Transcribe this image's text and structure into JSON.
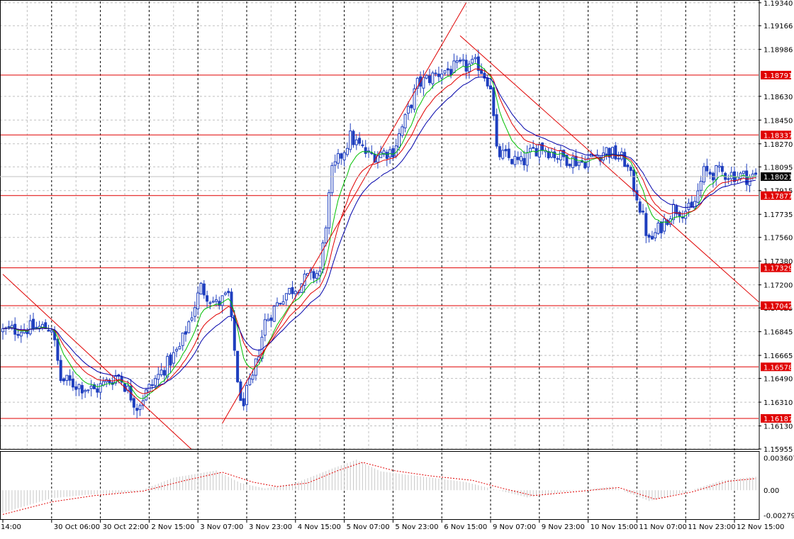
{
  "colors": {
    "background": "#ffffff",
    "grid": "#c0c0c0",
    "candles": "#1f3fbf",
    "ma_fast": "#00c000",
    "ma_mid": "#e00000",
    "ma_slow": "#0000aa",
    "levels": "#e00000",
    "trendlines": "#e00000",
    "current_price_badge": "#000000",
    "level_badge": "#e00000",
    "osma_bars": "#c8c8c8",
    "osma_signal": "#e00000"
  },
  "chart_data": [
    {
      "type": "candlestick",
      "price_axis": {
        "ticks": [
          "1.19340",
          "1.19166",
          "1.18986",
          "1.18630",
          "1.18450",
          "1.18270",
          "1.18095",
          "1.17915",
          "1.17735",
          "1.17560",
          "1.17380",
          "1.17200",
          "1.17025",
          "1.16845",
          "1.16665",
          "1.16490",
          "1.16310",
          "1.16130",
          "1.15955"
        ],
        "tick_values": [
          1.1934,
          1.19166,
          1.18986,
          1.1863,
          1.1845,
          1.1827,
          1.18095,
          1.17915,
          1.17735,
          1.1756,
          1.1738,
          1.172,
          1.17025,
          1.16845,
          1.16665,
          1.1649,
          1.1631,
          1.1613,
          1.15955
        ],
        "ylim": [
          1.1595,
          1.1935
        ]
      },
      "time_axis": {
        "labels": [
          "14:00",
          "30 Oct 06:00",
          "30 Oct 22:00",
          "2 Nov 15:00",
          "3 Nov 07:00",
          "3 Nov 23:00",
          "4 Nov 15:00",
          "5 Nov 07:00",
          "5 Nov 23:00",
          "6 Nov 15:00",
          "9 Nov 07:00",
          "9 Nov 23:00",
          "10 Nov 15:00",
          "11 Nov 07:00",
          "11 Nov 23:00",
          "12 Nov 15:00"
        ],
        "label_bars": [
          0,
          16,
          32,
          48,
          64,
          80,
          96,
          112,
          128,
          144,
          160,
          176,
          192,
          208,
          224,
          240
        ]
      },
      "price_path_keypoints": [
        {
          "bar": 0,
          "price": 1.1685
        },
        {
          "bar": 8,
          "price": 1.1687
        },
        {
          "bar": 16,
          "price": 1.1688
        },
        {
          "bar": 19,
          "price": 1.1648
        },
        {
          "bar": 30,
          "price": 1.164
        },
        {
          "bar": 38,
          "price": 1.1652
        },
        {
          "bar": 44,
          "price": 1.1628
        },
        {
          "bar": 50,
          "price": 1.1648
        },
        {
          "bar": 58,
          "price": 1.1672
        },
        {
          "bar": 65,
          "price": 1.1718
        },
        {
          "bar": 70,
          "price": 1.1705
        },
        {
          "bar": 74,
          "price": 1.1712
        },
        {
          "bar": 78,
          "price": 1.1628
        },
        {
          "bar": 82,
          "price": 1.1648
        },
        {
          "bar": 86,
          "price": 1.1692
        },
        {
          "bar": 92,
          "price": 1.1712
        },
        {
          "bar": 100,
          "price": 1.1725
        },
        {
          "bar": 104,
          "price": 1.173
        },
        {
          "bar": 108,
          "price": 1.1805
        },
        {
          "bar": 114,
          "price": 1.1832
        },
        {
          "bar": 120,
          "price": 1.1818
        },
        {
          "bar": 128,
          "price": 1.1822
        },
        {
          "bar": 132,
          "price": 1.1845
        },
        {
          "bar": 136,
          "price": 1.1872
        },
        {
          "bar": 144,
          "price": 1.1882
        },
        {
          "bar": 150,
          "price": 1.1885
        },
        {
          "bar": 156,
          "price": 1.1887
        },
        {
          "bar": 160,
          "price": 1.1872
        },
        {
          "bar": 162,
          "price": 1.182
        },
        {
          "bar": 170,
          "price": 1.1812
        },
        {
          "bar": 176,
          "price": 1.1826
        },
        {
          "bar": 182,
          "price": 1.1818
        },
        {
          "bar": 190,
          "price": 1.1813
        },
        {
          "bar": 198,
          "price": 1.1822
        },
        {
          "bar": 204,
          "price": 1.1814
        },
        {
          "bar": 208,
          "price": 1.1788
        },
        {
          "bar": 212,
          "price": 1.1752
        },
        {
          "bar": 220,
          "price": 1.1778
        },
        {
          "bar": 226,
          "price": 1.1776
        },
        {
          "bar": 230,
          "price": 1.1805
        },
        {
          "bar": 236,
          "price": 1.1805
        },
        {
          "bar": 244,
          "price": 1.1802
        },
        {
          "bar": 247,
          "price": 1.18021
        }
      ],
      "current_price": "1.18021",
      "current_price_value": 1.18021,
      "horizontal_levels": [
        {
          "label": "1.18791",
          "value": 1.18791
        },
        {
          "label": "1.18337",
          "value": 1.18337
        },
        {
          "label": "1.17877",
          "value": 1.17877
        },
        {
          "label": "1.17329",
          "value": 1.17329
        },
        {
          "label": "1.17042",
          "value": 1.17042
        },
        {
          "label": "1.16578",
          "value": 1.16578
        },
        {
          "label": "1.16187",
          "value": 1.16187
        }
      ],
      "trendlines": [
        {
          "x1": 0,
          "y1": 1.1728,
          "x2": 62,
          "y2": 1.1595
        },
        {
          "x1": 72,
          "y1": 1.1615,
          "x2": 152,
          "y2": 1.1934
        },
        {
          "x1": 150,
          "y1": 1.1909,
          "x2": 248,
          "y2": 1.1707
        }
      ],
      "moving_averages": [
        {
          "name": "fast",
          "period": 8
        },
        {
          "name": "mid",
          "period": 14
        },
        {
          "name": "slow",
          "period": 21
        }
      ],
      "grid": true
    },
    {
      "type": "histogram",
      "axis_ticks": [
        "0.003607",
        "0.00",
        "-0.002792"
      ],
      "axis_tick_values": [
        0.003607,
        0.0,
        -0.002792
      ],
      "ylim": [
        -0.0033,
        0.0042
      ],
      "osma_keypoints": [
        {
          "bar": 0,
          "value": -0.0025
        },
        {
          "bar": 16,
          "value": -0.0009
        },
        {
          "bar": 28,
          "value": -0.0005
        },
        {
          "bar": 44,
          "value": -0.0002
        },
        {
          "bar": 56,
          "value": 0.0014
        },
        {
          "bar": 70,
          "value": 0.0022
        },
        {
          "bar": 78,
          "value": 0.0008
        },
        {
          "bar": 86,
          "value": 0.0002
        },
        {
          "bar": 96,
          "value": 0.0008
        },
        {
          "bar": 108,
          "value": 0.0024
        },
        {
          "bar": 116,
          "value": 0.0034
        },
        {
          "bar": 124,
          "value": 0.0021
        },
        {
          "bar": 138,
          "value": 0.0015
        },
        {
          "bar": 152,
          "value": 0.0009
        },
        {
          "bar": 160,
          "value": 0.0002
        },
        {
          "bar": 172,
          "value": -0.0008
        },
        {
          "bar": 184,
          "value": -0.0002
        },
        {
          "bar": 200,
          "value": 0.0004
        },
        {
          "bar": 212,
          "value": -0.0012
        },
        {
          "bar": 224,
          "value": -0.0002
        },
        {
          "bar": 236,
          "value": 0.0011
        },
        {
          "bar": 247,
          "value": 0.0015
        }
      ],
      "signal_keypoints": [
        {
          "bar": 0,
          "value": -0.0027
        },
        {
          "bar": 16,
          "value": -0.0013
        },
        {
          "bar": 30,
          "value": -0.0006
        },
        {
          "bar": 46,
          "value": -0.0001
        },
        {
          "bar": 60,
          "value": 0.0011
        },
        {
          "bar": 72,
          "value": 0.002
        },
        {
          "bar": 82,
          "value": 0.0009
        },
        {
          "bar": 90,
          "value": 0.0004
        },
        {
          "bar": 100,
          "value": 0.0008
        },
        {
          "bar": 110,
          "value": 0.0022
        },
        {
          "bar": 118,
          "value": 0.0031
        },
        {
          "bar": 128,
          "value": 0.0022
        },
        {
          "bar": 140,
          "value": 0.0016
        },
        {
          "bar": 154,
          "value": 0.0011
        },
        {
          "bar": 164,
          "value": 0.0002
        },
        {
          "bar": 174,
          "value": -0.0006
        },
        {
          "bar": 190,
          "value": -0.0001
        },
        {
          "bar": 202,
          "value": 0.0003
        },
        {
          "bar": 214,
          "value": -0.001
        },
        {
          "bar": 226,
          "value": -0.0002
        },
        {
          "bar": 238,
          "value": 0.001
        },
        {
          "bar": 247,
          "value": 0.0013
        }
      ]
    }
  ]
}
